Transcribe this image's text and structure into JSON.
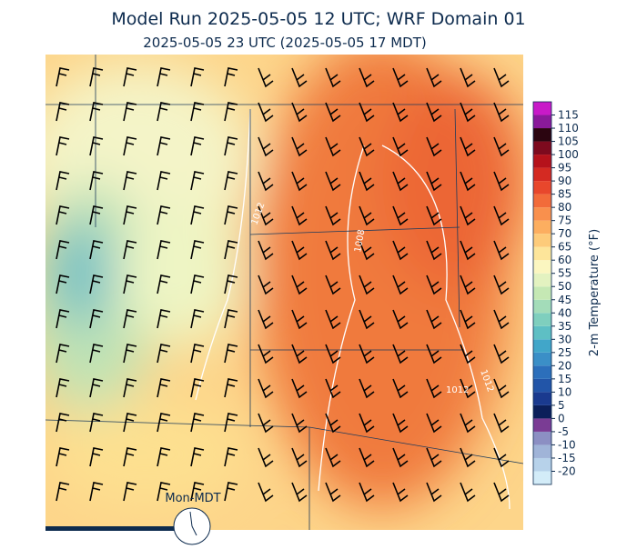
{
  "title": "Model Run 2025-05-05 12 UTC; WRF Domain 01",
  "subtitle": "2025-05-05 23 UTC  (2025-05-05 17 MDT)",
  "clock_label": "Mon-MDT",
  "contour_labels": [
    "1012",
    "1008",
    "1012",
    "1012"
  ],
  "colorbar": {
    "label": "2-m Temperature (°F)",
    "lim": [
      -25,
      120
    ],
    "ticks": [
      -20,
      -15,
      -10,
      -5,
      0,
      5,
      10,
      15,
      20,
      25,
      30,
      35,
      40,
      45,
      50,
      55,
      60,
      65,
      70,
      75,
      80,
      85,
      90,
      95,
      100,
      105,
      110,
      115
    ],
    "colors": [
      "#d3ecf8",
      "#b7d2ea",
      "#a0b4d8",
      "#8c8fc3",
      "#7a3c94",
      "#0b1f5a",
      "#1a3a8f",
      "#2255a8",
      "#2c6fbb",
      "#3b8fc7",
      "#41a6c9",
      "#5ebfc4",
      "#7fcfbe",
      "#a3dcb9",
      "#c5e8b4",
      "#e3f2c0",
      "#fbf6c0",
      "#fde59a",
      "#fdcb7a",
      "#fcae60",
      "#f9904d",
      "#f26b3a",
      "#e8472c",
      "#d42a22",
      "#b5121b",
      "#7d0a1e",
      "#2b0510",
      "#8a1a9a",
      "#c81ac8"
    ]
  }
}
